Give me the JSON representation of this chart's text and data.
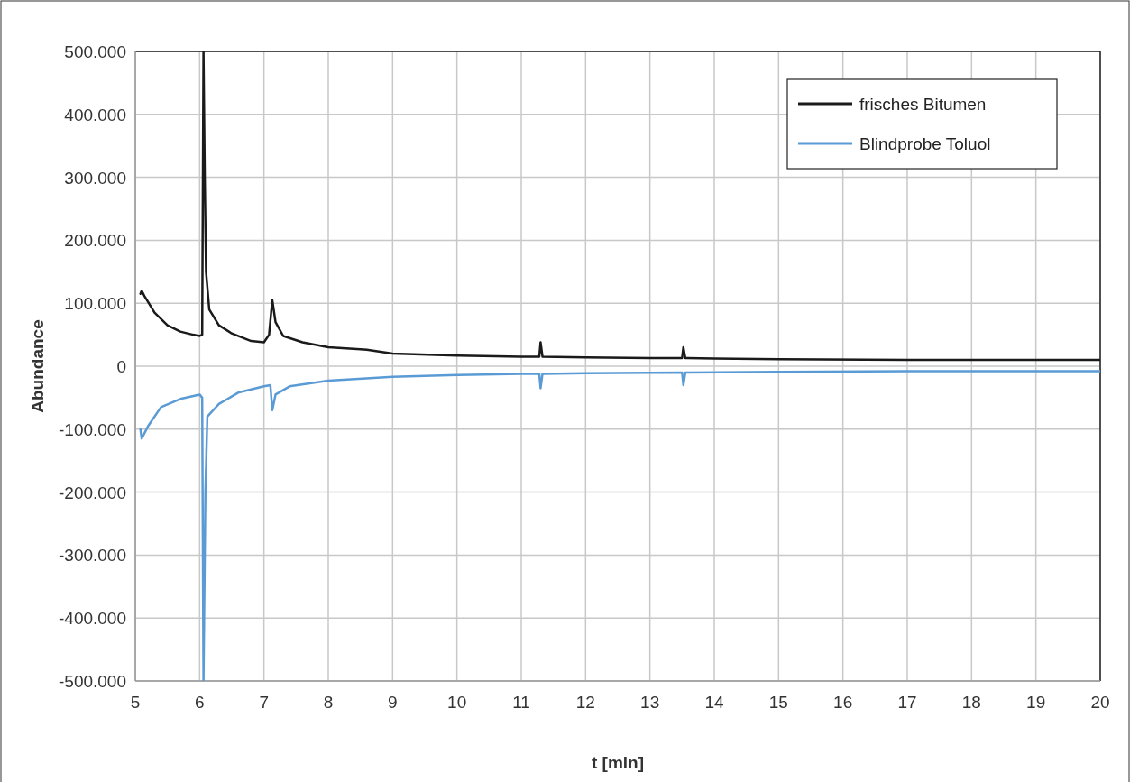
{
  "chart_data": {
    "type": "line",
    "xlabel": "t [min]",
    "ylabel": "Abundance",
    "xlim": [
      5,
      20
    ],
    "xticks": [
      5,
      6,
      7,
      8,
      9,
      10,
      11,
      12,
      13,
      14,
      15,
      16,
      17,
      18,
      19,
      20
    ],
    "ylim": [
      -500000,
      500000
    ],
    "yticks": [
      {
        "value": -500000,
        "label": "-500.000"
      },
      {
        "value": -400000,
        "label": "-400.000"
      },
      {
        "value": -300000,
        "label": "-300.000"
      },
      {
        "value": -200000,
        "label": "-200.000"
      },
      {
        "value": -100000,
        "label": "-100.000"
      },
      {
        "value": 0,
        "label": "0"
      },
      {
        "value": 100000,
        "label": "100.000"
      },
      {
        "value": 200000,
        "label": "200.000"
      },
      {
        "value": 300000,
        "label": "300.000"
      },
      {
        "value": 400000,
        "label": "400.000"
      },
      {
        "value": 500000,
        "label": "500.000"
      }
    ],
    "grid": true,
    "legend": "top right",
    "line_style": "solid",
    "series": [
      {
        "name": "frisches Bitumen",
        "color": "#1a1a1a",
        "x": [
          5.08,
          5.1,
          5.15,
          5.3,
          5.5,
          5.7,
          5.9,
          6.0,
          6.04,
          6.06,
          6.08,
          6.1,
          6.15,
          6.3,
          6.5,
          6.8,
          7.0,
          7.08,
          7.13,
          7.18,
          7.3,
          7.6,
          8.0,
          8.5,
          8.6,
          9,
          10,
          11,
          11.28,
          11.3,
          11.33,
          12,
          13,
          13.5,
          13.52,
          13.55,
          14,
          15,
          17,
          20
        ],
        "values": [
          115000,
          120000,
          110000,
          85000,
          65000,
          55000,
          50000,
          48000,
          50000,
          500000,
          300000,
          150000,
          90000,
          65000,
          52000,
          40000,
          38000,
          50000,
          105000,
          70000,
          48000,
          38000,
          30000,
          27000,
          26000,
          20000,
          17000,
          15000,
          15000,
          38000,
          15000,
          14000,
          13000,
          13000,
          30000,
          13000,
          12000,
          11000,
          10000,
          10000
        ]
      },
      {
        "name": "Blindprobe Toluol",
        "color": "#5b9bd5",
        "x": [
          5.08,
          5.1,
          5.2,
          5.4,
          5.7,
          6.0,
          6.04,
          6.06,
          6.09,
          6.12,
          6.3,
          6.6,
          7.0,
          7.1,
          7.13,
          7.18,
          7.4,
          8,
          9,
          10,
          11,
          11.28,
          11.3,
          11.33,
          12,
          13.5,
          13.52,
          13.55,
          15,
          17,
          20
        ],
        "values": [
          -100000,
          -115000,
          -95000,
          -65000,
          -52000,
          -45000,
          -50000,
          -500000,
          -200000,
          -80000,
          -60000,
          -42000,
          -32000,
          -30000,
          -70000,
          -45000,
          -32000,
          -23000,
          -17000,
          -14000,
          -12000,
          -12000,
          -35000,
          -12000,
          -11000,
          -10000,
          -30000,
          -10000,
          -9000,
          -8000,
          -8000
        ]
      }
    ]
  }
}
